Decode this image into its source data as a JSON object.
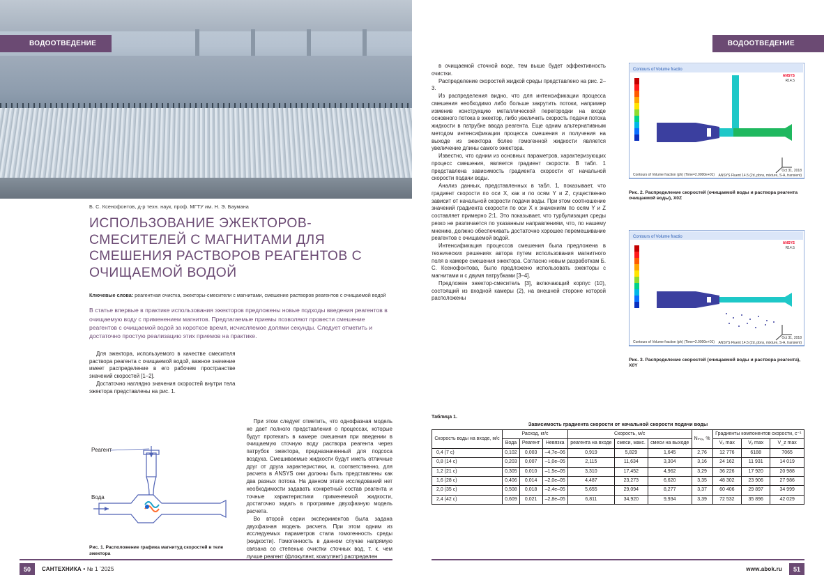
{
  "section_tag": "ВОДООТВЕДЕНИЕ",
  "author_line": "Б. С. Ксенофонтов, д-р техн. наук, проф. МГТУ им. Н. Э. Баумана",
  "title": "ИСПОЛЬЗОВАНИЕ ЭЖЕКТОРОВ-СМЕСИТЕЛЕЙ С МАГНИТАМИ ДЛЯ СМЕШЕНИЯ РАСТВОРОВ РЕАГЕНТОВ С ОЧИЩАЕМОЙ ВОДОЙ",
  "keywords_label": "Ключевые слова:",
  "keywords": "реагентная очистка, эжекторы-смесители с магнитами, смешение растворов реагентов с очищаемой водой",
  "abstract": "В статье впервые в практике использования эжекторов предложены новые подходы введения реагентов в очищаемую воду с применением магнитов. Предлагаемые приемы позволяют провести смешение реагентов с очищаемой водой за короткое время, исчисляемое долями секунды. Следует отметить и достаточно простую реализацию этих приемов на практике.",
  "left_col1": {
    "p1": "Для эжектора, используемого в качестве смесителя раствора реагента с очищаемой водой, важное значение имеет распределение в его рабочем пространстве значений скоростей [1–2].",
    "p2": "Достаточно наглядно значения скоростей внутри тела эжектора представлены на рис. 1."
  },
  "left_col2": {
    "p1": "При этом следует отметить, что однофазная модель не дает полного представления о процессах, которые будут протекать в камере смешения при введении в очищаемую сточную воду раствора реагента через патрубок эжектора, предназначенный для подсоса воздуха. Смешиваемые жидкости будут иметь отличные друг от друга характеристики, и, соответственно, для расчета в ANSYS они должны быть представлены как два разных потока. На данном этапе исследований нет необходимости задавать конкретный состав реагента и точные характеристики применяемой жидкости, достаточно задать в программе двухфазную модель расчета.",
    "p2": "Во второй серии экспериментов была задана двухфазная модель расчета. При этом одним из исследуемых параметров стала гомогенность среды (жидкости). Гомогенность в данном случае напрямую связана со степенью очистки сточных вод, т. к. чем лучше реагент (флокулянт, коагулянт) распределен"
  },
  "right_text": {
    "p1": "в очищаемой сточной воде, тем выше будет эффективность очистки.",
    "p2": "Распределение скоростей жидкой среды представлено на рис. 2–3.",
    "p3": "Из распределения видно, что для интенсификации процесса смешения необходимо либо больше закрутить потоки, например изменив конструкцию металлической перегородки на входе основного потока в эжектор, либо увеличить скорость подачи потока жидкости в патрубке ввода реагента. Еще одним альтернативным методом интенсификации процесса смешения и получения на выходе из эжектора более гомогенной жидкости является увеличение длины самого эжектора.",
    "p4": "Известно, что одним из основных параметров, характеризующих процесс смешения, является градиент скорости. В табл. 1 представлена зависимость градиента скорости от начальной скорости подачи воды.",
    "p5": "Анализ данных, представленных в табл. 1, показывает, что градиент скорости по оси X, как и по осям Y и Z, существенно зависит от начальной скорости подачи воды. При этом соотношение значений градиента скорости по оси X к значениям по осям Y и Z составляет примерно 2:1. Это показывает, что турбулизация среды резко не различается по указанным направлениям, что, по нашему мнению, должно обеспечивать достаточно хорошее перемешивание реагентов с очищаемой водой.",
    "p6": "Интенсификация процессов смешения была предложена в технических решениях автора путем использования магнитного поля в камере смешения эжектора. Согласно новым разработкам Б. С. Ксенофонтова, было предложено использовать эжекторы с магнитами и с двумя патрубками [3–4].",
    "p7": "Предложен эжектор-смеситель [3], включающий корпус (10), состоящий из входной камеры (2), на внешней стороне которой расположены"
  },
  "fig1": {
    "caption": "Рис. 1. Расположение графика магнитуд скоростей в теле эжектора",
    "label_reagent": "Реагент",
    "label_water": "Вода"
  },
  "fig2": {
    "caption": "Рис. 2. Распределение скоростей (очищаемой воды и раствора реагента очищаемой воды), X0Z",
    "top_label": "Contours of Volume fractio",
    "bottom_label": "Contours of Volume fraction (ph)    (Time=2.0000e+01)",
    "ansys": "ANSYS Fluent 14.5 (2d, pbns, mixture, S-A, transient)",
    "date": "Oct 31, 2018",
    "brand": "ANSYS",
    "ver": "R14.5"
  },
  "fig3": {
    "caption": "Рис. 3. Распределение скоростей (очищаемой воды и раствора реагента), X0Y",
    "top_label": "Contours of Volume fractio",
    "bottom_label": "Contours of Volume fraction (ph)    (Time=2.0000e+01)",
    "ansys": "ANSYS Fluent 14.5 (2d, pbns, mixture, S-A, transient)",
    "date": "Oct 31, 2018",
    "brand": "ANSYS",
    "ver": "R14.5"
  },
  "table1": {
    "label": "Таблица 1.",
    "title": "Зависимость градиента скорости от начальной скорости подачи воды",
    "col_speed_in": "Скорость воды на входе, м/с",
    "col_flow": "Расход, кг/с",
    "col_vel": "Скорость, м/с",
    "col_nmix": "Nₘᵢₓ, %",
    "col_grad": "Градиенты компонентов скорости, с⁻¹",
    "sub_water": "Вода",
    "sub_reagent": "Реагент",
    "sub_mismatch": "Невязка",
    "sub_vin": "реагента на входе",
    "sub_vmax": "смеси, макс.",
    "sub_vout": "смеси на выходе",
    "sub_vx": "Vₓ max",
    "sub_vy": "Vᵧ max",
    "sub_vz": "V_z max",
    "rows": [
      {
        "v": "0,4 (7 с)",
        "q1": "0,102",
        "q2": "0,003",
        "q3": "–4,7е–06",
        "s1": "0,919",
        "s2": "5,829",
        "s3": "1,645",
        "n": "2,76",
        "g1": "12 776",
        "g2": "6188",
        "g3": "7065"
      },
      {
        "v": "0,8 (14 с)",
        "q1": "0,203",
        "q2": "0,007",
        "q3": "–1,0е–05",
        "s1": "2,115",
        "s2": "11,634",
        "s3": "3,304",
        "n": "3,16",
        "g1": "24 162",
        "g2": "11 931",
        "g3": "14 019"
      },
      {
        "v": "1,2 (21 с)",
        "q1": "0,305",
        "q2": "0,010",
        "q3": "–1,5е–05",
        "s1": "3,310",
        "s2": "17,452",
        "s3": "4,962",
        "n": "3,29",
        "g1": "36 226",
        "g2": "17 920",
        "g3": "20 988"
      },
      {
        "v": "1,6 (28 с)",
        "q1": "0,406",
        "q2": "0,014",
        "q3": "–2,0е–05",
        "s1": "4,487",
        "s2": "23,273",
        "s3": "6,620",
        "n": "3,35",
        "g1": "48 302",
        "g2": "23 906",
        "g3": "27 986"
      },
      {
        "v": "2,0 (35 с)",
        "q1": "0,508",
        "q2": "0,018",
        "q3": "–2,4е–05",
        "s1": "5,655",
        "s2": "29,094",
        "s3": "8,277",
        "n": "3,37",
        "g1": "60 406",
        "g2": "29 897",
        "g3": "34 999"
      },
      {
        "v": "2,4 (42 с)",
        "q1": "0,609",
        "q2": "0,021",
        "q3": "–2,8е–05",
        "s1": "6,811",
        "s2": "34,920",
        "s3": "9,934",
        "n": "3,39",
        "g1": "72 532",
        "g2": "35 896",
        "g3": "42 029"
      }
    ]
  },
  "footer": {
    "magazine": "САНТЕХНИКА",
    "issue": "№ 1 ʼ2025",
    "page_left": "50",
    "page_right": "51",
    "url": "www.abok.ru"
  },
  "colors": {
    "accent": "#6b4a73",
    "text": "#231f20",
    "blue_line": "#4f62b5",
    "ejector_body": "#3b3f9f",
    "cyan": "#1ec8c8",
    "green": "#1fb85f",
    "rainbow": [
      "#0a2fbf",
      "#0a6fff",
      "#00b7e6",
      "#00d28a",
      "#8fdc2e",
      "#ffe400",
      "#ffa400",
      "#ff5a00",
      "#ff1a1a",
      "#c40000"
    ]
  }
}
